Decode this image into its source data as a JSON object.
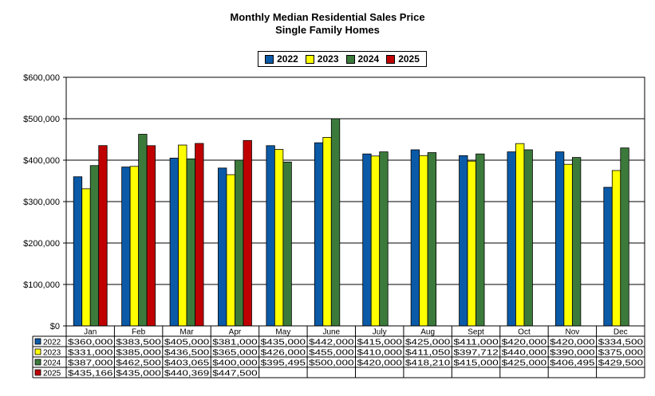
{
  "chart_data": {
    "type": "bar",
    "title": "Monthly Median Residential Sales Price",
    "subtitle": "Single Family Homes",
    "ylim": [
      0,
      600000
    ],
    "yticks": [
      "$0",
      "$100,000",
      "$200,000",
      "$300,000",
      "$400,000",
      "$500,000",
      "$600,000"
    ],
    "ytick_values": [
      0,
      100000,
      200000,
      300000,
      400000,
      500000,
      600000
    ],
    "categories": [
      "Jan",
      "Feb",
      "Mar",
      "Apr",
      "May",
      "June",
      "July",
      "Aug",
      "Sept",
      "Oct",
      "Nov",
      "Dec"
    ],
    "grid": true,
    "legend_position": "top-center",
    "series": [
      {
        "name": "2022",
        "color": "#0b5aa8",
        "values": [
          360000,
          383500,
          405000,
          381000,
          435000,
          442000,
          415000,
          425000,
          411000,
          420000,
          420000,
          334500
        ],
        "labels": [
          "$360,000",
          "$383,500",
          "$405,000",
          "$381,000",
          "$435,000",
          "$442,000",
          "$415,000",
          "$425,000",
          "$411,000",
          "$420,000",
          "$420,000",
          "$334,500"
        ]
      },
      {
        "name": "2023",
        "color": "#ffff00",
        "values": [
          331000,
          385000,
          436500,
          365000,
          426000,
          455000,
          410000,
          411050,
          397712,
          440000,
          390000,
          375000
        ],
        "labels": [
          "$331,000",
          "$385,000",
          "$436,500",
          "$365,000",
          "$426,000",
          "$455,000",
          "$410,000",
          "$411,050",
          "$397,712",
          "$440,000",
          "$390,000",
          "$375,000"
        ]
      },
      {
        "name": "2024",
        "color": "#3c7a3c",
        "values": [
          387000,
          462500,
          403065,
          400000,
          395495,
          500000,
          420000,
          418210,
          415000,
          425000,
          406495,
          429500
        ],
        "labels": [
          "$387,000",
          "$462,500",
          "$403,065",
          "$400,000",
          "$395,495",
          "$500,000",
          "$420,000",
          "$418,210",
          "$415,000",
          "$425,000",
          "$406,495",
          "$429,500"
        ]
      },
      {
        "name": "2025",
        "color": "#c00000",
        "values": [
          435166,
          435000,
          440369,
          447500,
          null,
          null,
          null,
          null,
          null,
          null,
          null,
          null
        ],
        "labels": [
          "$435,166",
          "$435,000",
          "$440,369",
          "$447,500",
          "",
          "",
          "",
          "",
          "",
          "",
          "",
          ""
        ]
      }
    ]
  }
}
